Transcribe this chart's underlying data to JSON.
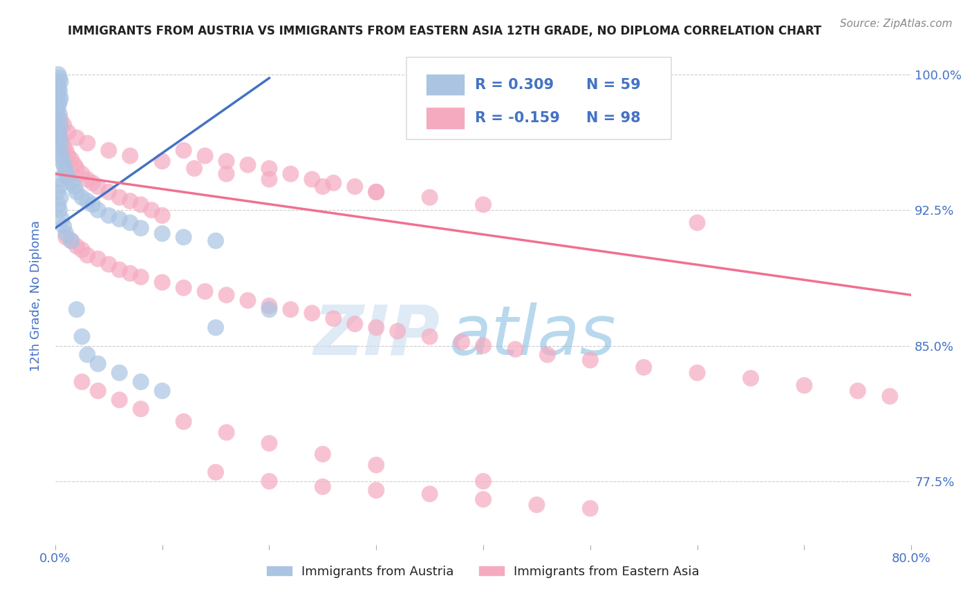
{
  "title": "IMMIGRANTS FROM AUSTRIA VS IMMIGRANTS FROM EASTERN ASIA 12TH GRADE, NO DIPLOMA CORRELATION CHART",
  "source": "Source: ZipAtlas.com",
  "ylabel": "12th Grade, No Diploma",
  "xmin": 0.0,
  "xmax": 0.8,
  "ymin": 0.74,
  "ymax": 1.015,
  "ytick_right_vals": [
    0.775,
    0.85,
    0.925,
    1.0
  ],
  "ytick_right_labels": [
    "77.5%",
    "85.0%",
    "92.5%",
    "100.0%"
  ],
  "legend_r1": "R = 0.309",
  "legend_n1": "N = 59",
  "legend_r2": "R = -0.159",
  "legend_n2": "N = 98",
  "austria_color": "#aac4e2",
  "eastern_asia_color": "#f5aac0",
  "austria_line_color": "#4472c4",
  "eastern_asia_line_color": "#f07090",
  "background_color": "#ffffff",
  "grid_color": "#c8c8c8",
  "title_color": "#222222",
  "axis_label_color": "#4472c4",
  "watermark_zip": "ZIP",
  "watermark_atlas": "atlas",
  "austria_scatter_x": [
    0.003,
    0.004,
    0.005,
    0.002,
    0.003,
    0.004,
    0.003,
    0.005,
    0.004,
    0.003,
    0.002,
    0.004,
    0.003,
    0.005,
    0.002,
    0.003,
    0.004,
    0.005,
    0.003,
    0.004,
    0.006,
    0.007,
    0.008,
    0.009,
    0.01,
    0.012,
    0.015,
    0.018,
    0.02,
    0.025,
    0.03,
    0.035,
    0.04,
    0.05,
    0.06,
    0.07,
    0.08,
    0.1,
    0.12,
    0.15,
    0.003,
    0.004,
    0.002,
    0.005,
    0.003,
    0.004,
    0.006,
    0.008,
    0.01,
    0.015,
    0.02,
    0.025,
    0.03,
    0.04,
    0.06,
    0.08,
    0.1,
    0.15,
    0.2
  ],
  "austria_scatter_y": [
    1.0,
    0.998,
    0.996,
    0.995,
    0.993,
    0.991,
    0.989,
    0.987,
    0.985,
    0.983,
    0.98,
    0.978,
    0.975,
    0.972,
    0.97,
    0.968,
    0.965,
    0.962,
    0.96,
    0.958,
    0.955,
    0.952,
    0.95,
    0.948,
    0.945,
    0.943,
    0.94,
    0.938,
    0.935,
    0.932,
    0.93,
    0.928,
    0.925,
    0.922,
    0.92,
    0.918,
    0.915,
    0.912,
    0.91,
    0.908,
    0.942,
    0.938,
    0.935,
    0.932,
    0.928,
    0.925,
    0.92,
    0.916,
    0.912,
    0.908,
    0.87,
    0.855,
    0.845,
    0.84,
    0.835,
    0.83,
    0.825,
    0.86,
    0.87
  ],
  "eastern_asia_scatter_x": [
    0.003,
    0.004,
    0.005,
    0.006,
    0.008,
    0.01,
    0.012,
    0.015,
    0.018,
    0.02,
    0.025,
    0.03,
    0.035,
    0.04,
    0.05,
    0.06,
    0.07,
    0.08,
    0.09,
    0.1,
    0.12,
    0.14,
    0.16,
    0.18,
    0.2,
    0.22,
    0.24,
    0.26,
    0.28,
    0.3,
    0.01,
    0.015,
    0.02,
    0.025,
    0.03,
    0.04,
    0.05,
    0.06,
    0.07,
    0.08,
    0.1,
    0.12,
    0.14,
    0.16,
    0.18,
    0.2,
    0.22,
    0.24,
    0.26,
    0.28,
    0.3,
    0.32,
    0.35,
    0.38,
    0.4,
    0.43,
    0.46,
    0.5,
    0.55,
    0.6,
    0.65,
    0.7,
    0.75,
    0.78,
    0.005,
    0.008,
    0.012,
    0.02,
    0.03,
    0.05,
    0.07,
    0.1,
    0.13,
    0.16,
    0.2,
    0.25,
    0.3,
    0.35,
    0.4,
    0.6,
    0.025,
    0.04,
    0.06,
    0.08,
    0.12,
    0.16,
    0.2,
    0.25,
    0.3,
    0.4,
    0.15,
    0.2,
    0.25,
    0.3,
    0.35,
    0.4,
    0.45,
    0.5
  ],
  "eastern_asia_scatter_y": [
    0.97,
    0.968,
    0.965,
    0.962,
    0.96,
    0.958,
    0.955,
    0.953,
    0.95,
    0.948,
    0.945,
    0.942,
    0.94,
    0.938,
    0.935,
    0.932,
    0.93,
    0.928,
    0.925,
    0.922,
    0.958,
    0.955,
    0.952,
    0.95,
    0.948,
    0.945,
    0.942,
    0.94,
    0.938,
    0.935,
    0.91,
    0.908,
    0.905,
    0.903,
    0.9,
    0.898,
    0.895,
    0.892,
    0.89,
    0.888,
    0.885,
    0.882,
    0.88,
    0.878,
    0.875,
    0.872,
    0.87,
    0.868,
    0.865,
    0.862,
    0.86,
    0.858,
    0.855,
    0.852,
    0.85,
    0.848,
    0.845,
    0.842,
    0.838,
    0.835,
    0.832,
    0.828,
    0.825,
    0.822,
    0.975,
    0.972,
    0.968,
    0.965,
    0.962,
    0.958,
    0.955,
    0.952,
    0.948,
    0.945,
    0.942,
    0.938,
    0.935,
    0.932,
    0.928,
    0.918,
    0.83,
    0.825,
    0.82,
    0.815,
    0.808,
    0.802,
    0.796,
    0.79,
    0.784,
    0.775,
    0.78,
    0.775,
    0.772,
    0.77,
    0.768,
    0.765,
    0.762,
    0.76
  ],
  "austria_trendline_x": [
    0.0,
    0.2
  ],
  "austria_trendline_y": [
    0.915,
    0.998
  ],
  "eastern_asia_trendline_x": [
    0.0,
    0.8
  ],
  "eastern_asia_trendline_y": [
    0.945,
    0.878
  ]
}
